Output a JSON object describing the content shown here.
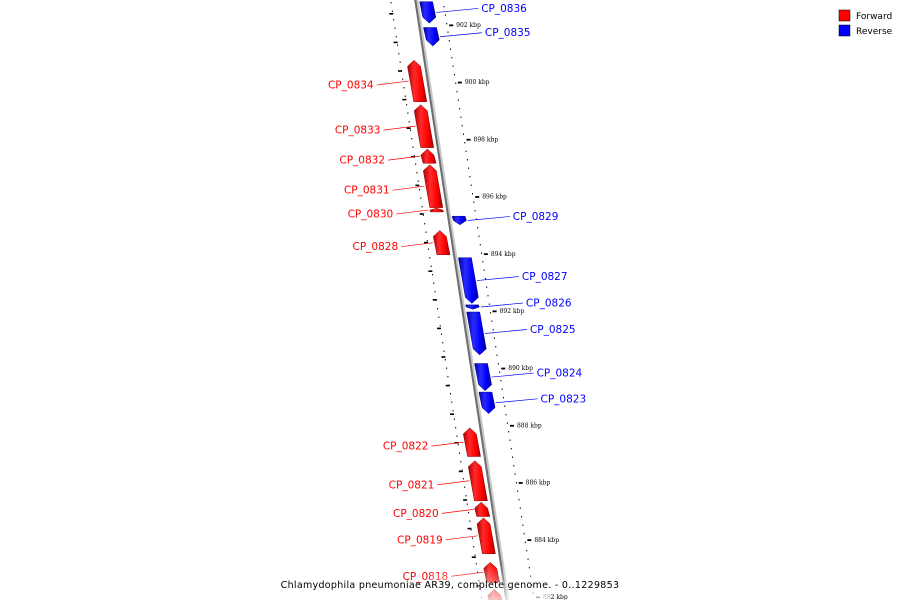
{
  "legend": {
    "forward": {
      "label": "Forward",
      "color": "#ff0000"
    },
    "reverse": {
      "label": "Reverse",
      "color": "#0000ff"
    }
  },
  "caption": "Chlamydophila pneumoniae AR39, complete genome. - 0..1229853",
  "genes": [
    {
      "label": "CP_0836",
      "strand": "reverse",
      "start_kbp": 902.9,
      "end_kbp": 902.15
    },
    {
      "label": "CP_0835",
      "strand": "reverse",
      "start_kbp": 902.0,
      "end_kbp": 901.35
    },
    {
      "label": "CP_0834",
      "strand": "forward",
      "start_kbp": 900.85,
      "end_kbp": 899.4
    },
    {
      "label": "CP_0833",
      "strand": "forward",
      "start_kbp": 899.3,
      "end_kbp": 897.8
    },
    {
      "label": "CP_0832",
      "strand": "forward",
      "start_kbp": 897.75,
      "end_kbp": 897.25
    },
    {
      "label": "CP_0831",
      "strand": "forward",
      "start_kbp": 897.2,
      "end_kbp": 895.7
    },
    {
      "label": "CP_0830",
      "strand": "forward",
      "start_kbp": 895.68,
      "end_kbp": 895.55
    },
    {
      "label": "CP_0829",
      "strand": "reverse",
      "start_kbp": 895.4,
      "end_kbp": 895.1
    },
    {
      "label": "CP_0828",
      "strand": "forward",
      "start_kbp": 894.9,
      "end_kbp": 894.05
    },
    {
      "label": "CP_0827",
      "strand": "reverse",
      "start_kbp": 893.95,
      "end_kbp": 892.35
    },
    {
      "label": "CP_0826",
      "strand": "reverse",
      "start_kbp": 892.3,
      "end_kbp": 892.15
    },
    {
      "label": "CP_0825",
      "strand": "reverse",
      "start_kbp": 892.05,
      "end_kbp": 890.55
    },
    {
      "label": "CP_0824",
      "strand": "reverse",
      "start_kbp": 890.25,
      "end_kbp": 889.3
    },
    {
      "label": "CP_0823",
      "strand": "reverse",
      "start_kbp": 889.25,
      "end_kbp": 888.5
    },
    {
      "label": "CP_0822",
      "strand": "forward",
      "start_kbp": 888.0,
      "end_kbp": 887.0
    },
    {
      "label": "CP_0821",
      "strand": "forward",
      "start_kbp": 886.85,
      "end_kbp": 885.45
    },
    {
      "label": "CP_0820",
      "strand": "forward",
      "start_kbp": 885.4,
      "end_kbp": 884.9
    },
    {
      "label": "CP_0819",
      "strand": "forward",
      "start_kbp": 884.85,
      "end_kbp": 883.6
    },
    {
      "label": "CP_0818",
      "strand": "forward",
      "start_kbp": 883.3,
      "end_kbp": 882.6
    },
    {
      "label": "",
      "strand": "forward",
      "start_kbp": 882.35,
      "end_kbp": 881.8
    }
  ],
  "ticks": [
    {
      "kbp": 902,
      "label": "902 kbp"
    },
    {
      "kbp": 900,
      "label": "900 kbp"
    },
    {
      "kbp": 898,
      "label": "898 kbp"
    },
    {
      "kbp": 896,
      "label": "896 kbp"
    },
    {
      "kbp": 894,
      "label": "894 kbp"
    },
    {
      "kbp": 892,
      "label": "892 kbp"
    },
    {
      "kbp": 890,
      "label": "890 kbp"
    },
    {
      "kbp": 888,
      "label": "888 kbp"
    },
    {
      "kbp": 886,
      "label": "886 kbp"
    },
    {
      "kbp": 884,
      "label": "884 kbp"
    },
    {
      "kbp": 882,
      "label": "882 kbp"
    }
  ]
}
